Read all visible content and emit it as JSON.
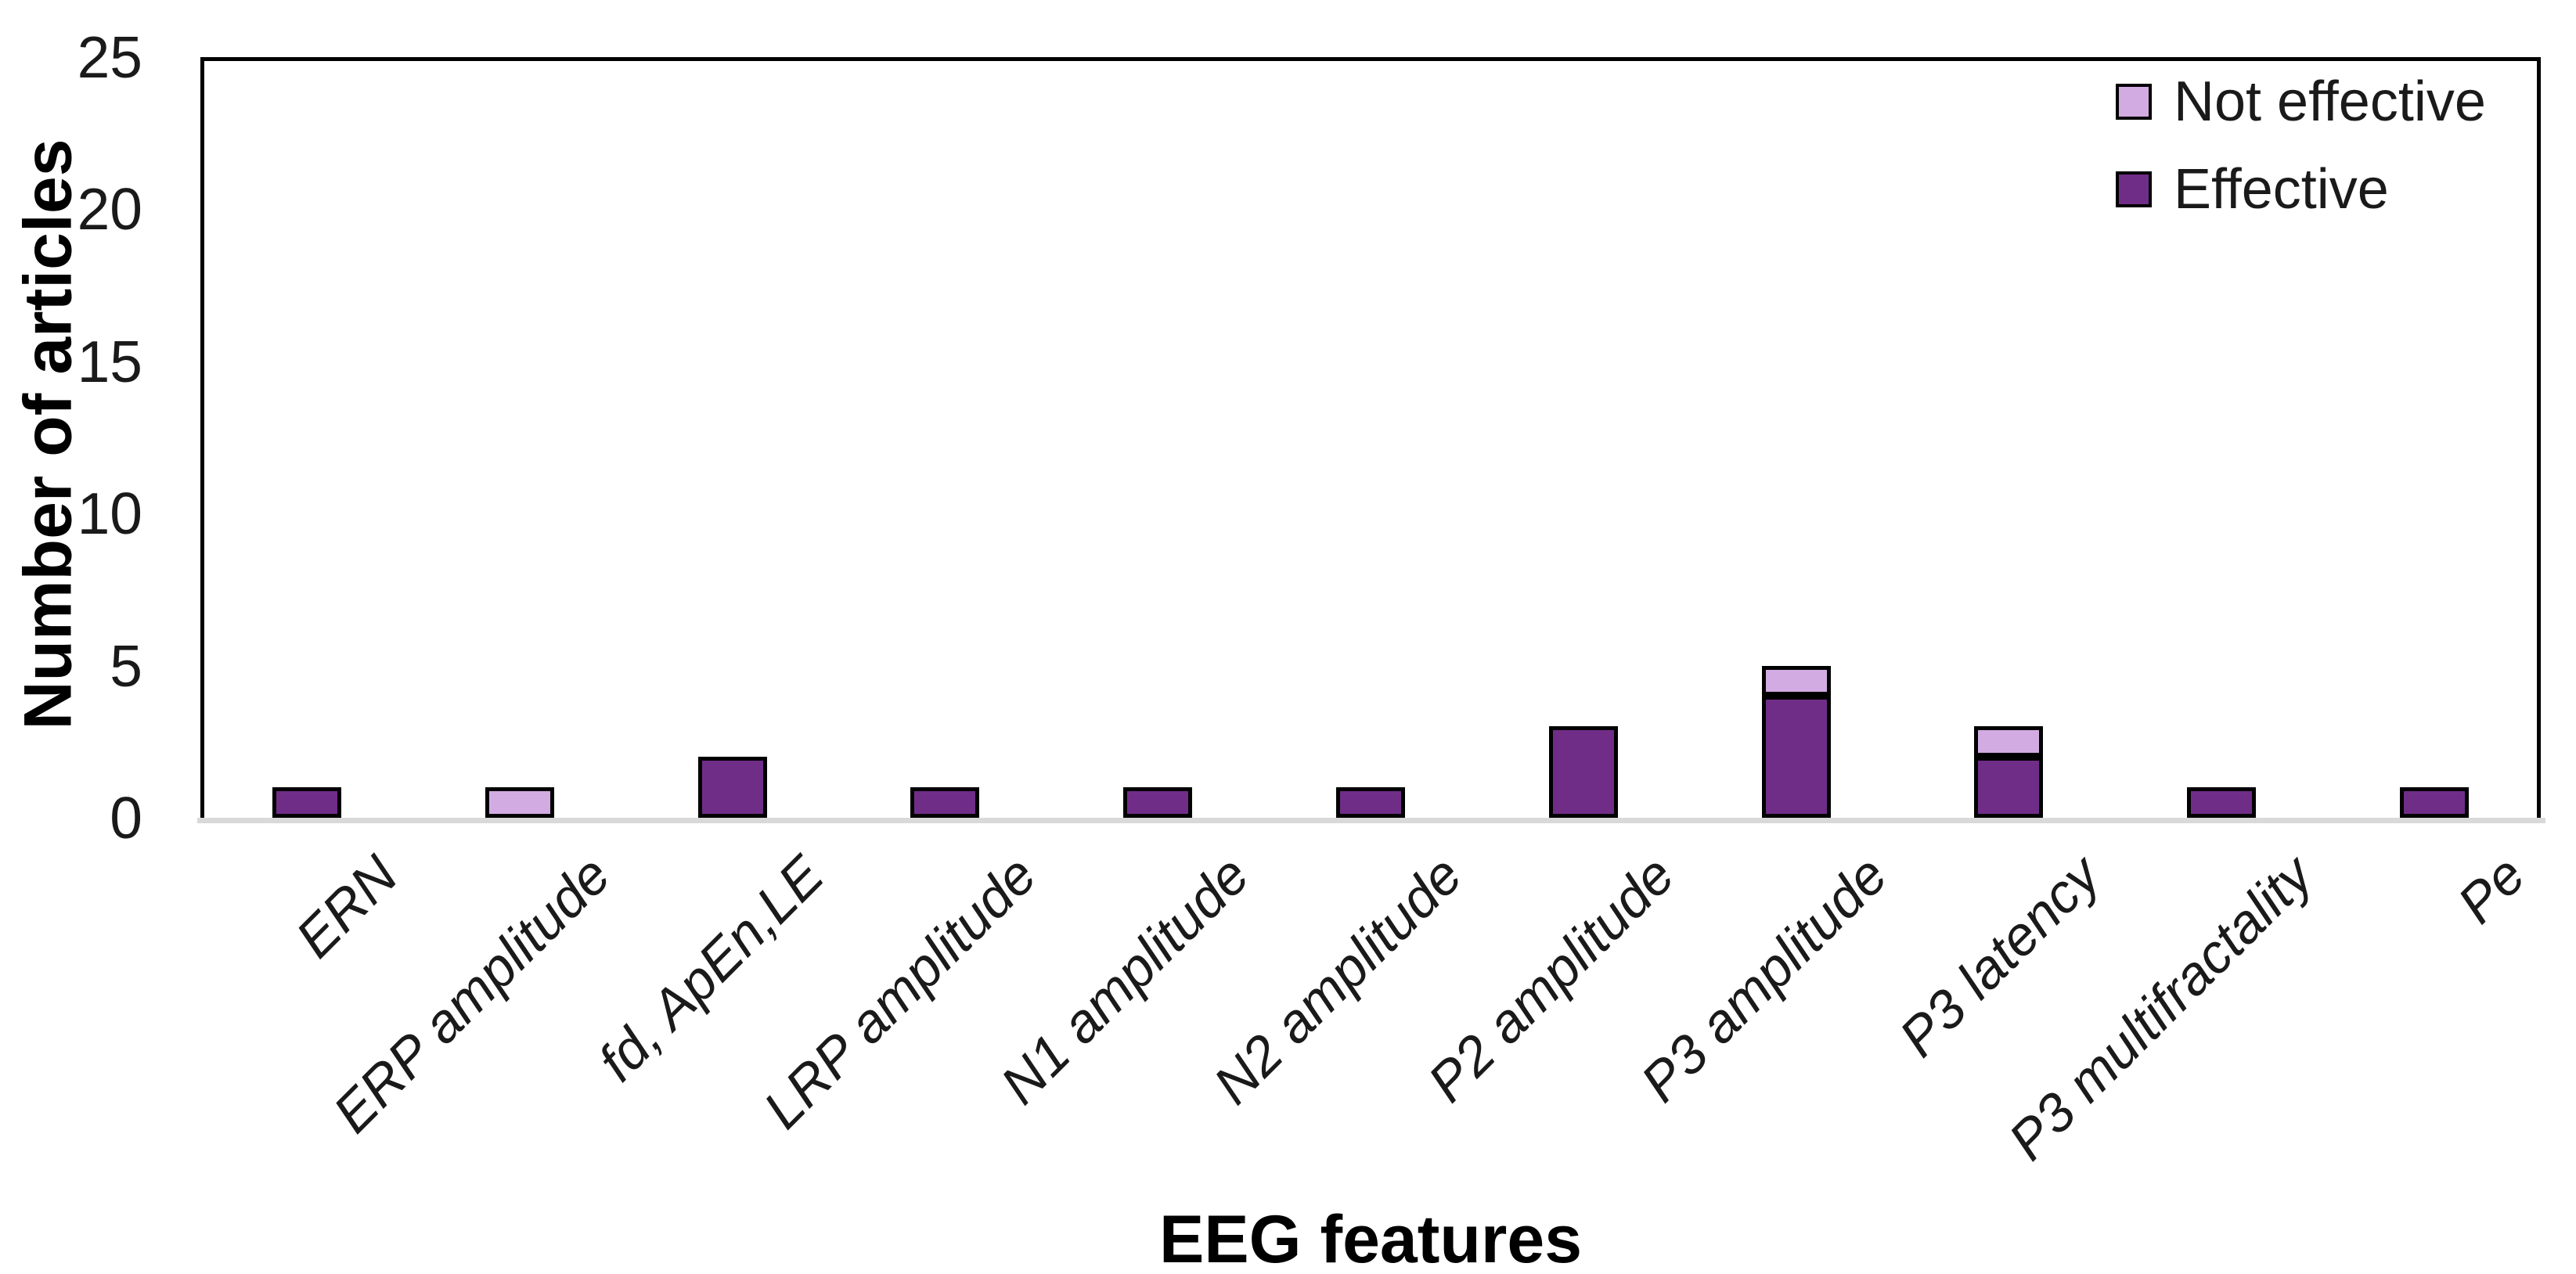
{
  "chart_data": {
    "type": "bar",
    "stacked": true,
    "title": "",
    "xlabel": "EEG features",
    "ylabel": "Number of articles",
    "ylim": [
      0,
      25
    ],
    "yticks": [
      0,
      5,
      10,
      15,
      20,
      25
    ],
    "grid": false,
    "categories": [
      "ERN",
      "ERP amplitude",
      "fd, ApEn,LE",
      "LRP amplitude",
      "N1 amplitude",
      "N2 amplitude",
      "P2 amplitude",
      "P3 amplitude",
      "P3 latency",
      "P3 multifractality",
      "Pe"
    ],
    "series": [
      {
        "name": "Effective",
        "color": "#702D87",
        "values": [
          1,
          0,
          2,
          1,
          1,
          1,
          3,
          4,
          2,
          1,
          1
        ]
      },
      {
        "name": "Not effective",
        "color": "#D3ABE3",
        "values": [
          0,
          1,
          0,
          0,
          0,
          0,
          0,
          1,
          1,
          0,
          0
        ]
      }
    ],
    "totals": [
      1,
      1,
      2,
      1,
      1,
      1,
      3,
      5,
      3,
      1,
      1
    ],
    "legend": {
      "position": "top-right-inside",
      "entries": [
        "Not effective",
        "Effective"
      ]
    },
    "colors": {
      "bar_border": "#000000",
      "plot_frame": "#000000",
      "axis_line": "#D9D9D9",
      "background": "#FFFFFF",
      "text": "#1A1A1A"
    }
  }
}
